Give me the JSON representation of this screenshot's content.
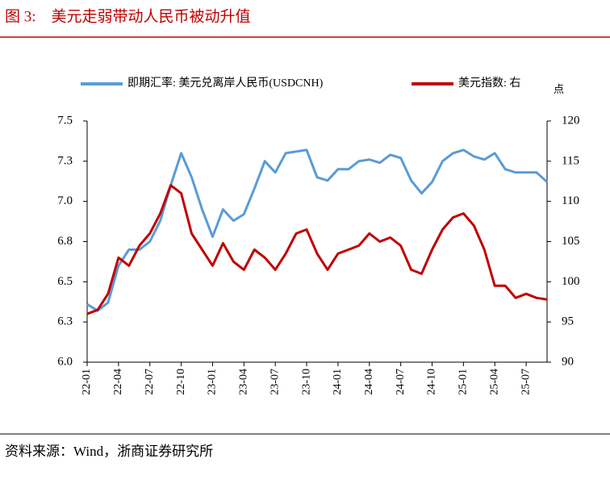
{
  "chart_data": {
    "type": "line",
    "title": "图 3:    美元走弱带动人民币被动升值",
    "source": "资料来源：Wind，浙商证券研究所",
    "y2_label": "点",
    "categories": [
      "22-01",
      null,
      null,
      "22-04",
      null,
      null,
      "22-07",
      null,
      null,
      "22-10",
      null,
      null,
      "23-01",
      null,
      null,
      "23-04",
      null,
      null,
      "23-07",
      null,
      null,
      "23-10",
      null,
      null,
      "24-01",
      null,
      null,
      "24-04",
      null,
      null,
      "24-07",
      null,
      null,
      "24-10",
      null,
      null,
      "25-01",
      null,
      null,
      "25-04",
      null,
      null,
      "25-07",
      null,
      null
    ],
    "series": [
      {
        "name": "即期汇率: 美元兑离岸人民币(USDCNH)",
        "color": "#5b9bd5",
        "axis": "y",
        "values": [
          6.36,
          6.32,
          6.37,
          6.6,
          6.7,
          6.7,
          6.75,
          6.88,
          7.1,
          7.3,
          7.15,
          6.95,
          6.78,
          6.95,
          6.88,
          6.92,
          7.08,
          7.25,
          7.18,
          7.3,
          7.31,
          7.32,
          7.15,
          7.13,
          7.2,
          7.2,
          7.25,
          7.26,
          7.24,
          7.29,
          7.27,
          7.13,
          7.05,
          7.12,
          7.25,
          7.3,
          7.32,
          7.28,
          7.26,
          7.3,
          7.2,
          7.18,
          7.18,
          7.18,
          7.12
        ]
      },
      {
        "name": "美元指数: 右",
        "color": "#c00000",
        "axis": "y2",
        "values": [
          96,
          96.5,
          98.5,
          103,
          102,
          104.5,
          106,
          108.5,
          112,
          111,
          106,
          104,
          102,
          104.8,
          102.5,
          101.5,
          104,
          103,
          101.5,
          103.5,
          106,
          106.5,
          103.5,
          101.5,
          103.5,
          104,
          104.5,
          106,
          105,
          105.5,
          104.5,
          101.5,
          101,
          104,
          106.5,
          108,
          108.5,
          107,
          104,
          99.5,
          99.5,
          98,
          98.5,
          98,
          97.8
        ]
      }
    ],
    "ylim": [
      6.0,
      7.5
    ],
    "yticks": [
      {
        "value": 6.0,
        "label": "6.0"
      },
      {
        "value": 6.25,
        "label": "6.3"
      },
      {
        "value": 6.5,
        "label": "6.5"
      },
      {
        "value": 6.75,
        "label": "6.8"
      },
      {
        "value": 7.0,
        "label": "7.0"
      },
      {
        "value": 7.25,
        "label": "7.3"
      },
      {
        "value": 7.5,
        "label": "7.5"
      }
    ],
    "y2lim": [
      90,
      120
    ],
    "y2ticks": [
      90,
      95,
      100,
      105,
      110,
      115,
      120
    ],
    "legend": "top"
  }
}
